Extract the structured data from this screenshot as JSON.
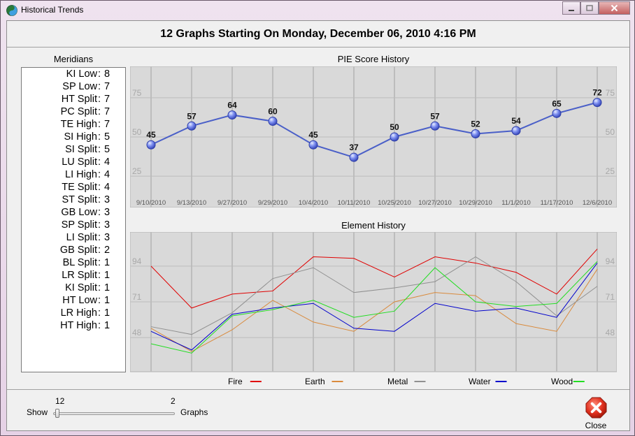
{
  "window": {
    "title": "Historical Trends",
    "icon": "yin-yang-icon"
  },
  "header": {
    "title": "12 Graphs Starting On Monday, December 06, 2010 4:16 PM"
  },
  "meridians": {
    "label": "Meridians",
    "items": [
      {
        "name": "KI Low",
        "value": "8"
      },
      {
        "name": "SP Low",
        "value": "7"
      },
      {
        "name": "HT Split",
        "value": "7"
      },
      {
        "name": "PC Split",
        "value": "7"
      },
      {
        "name": "TE High",
        "value": "7"
      },
      {
        "name": "SI High",
        "value": "5"
      },
      {
        "name": "SI Split",
        "value": "5"
      },
      {
        "name": "LU Split",
        "value": "4"
      },
      {
        "name": "LI High",
        "value": "4"
      },
      {
        "name": "TE Split",
        "value": "4"
      },
      {
        "name": "ST Split",
        "value": "3"
      },
      {
        "name": "GB Low",
        "value": "3"
      },
      {
        "name": "SP Split",
        "value": "3"
      },
      {
        "name": "LI Split",
        "value": "3"
      },
      {
        "name": "GB Split",
        "value": "2"
      },
      {
        "name": "BL Split",
        "value": "1"
      },
      {
        "name": "LR Split",
        "value": "1"
      },
      {
        "name": "KI Split",
        "value": "1"
      },
      {
        "name": "HT Low",
        "value": "1"
      },
      {
        "name": "LR High",
        "value": "1"
      },
      {
        "name": "HT High",
        "value": "1"
      }
    ]
  },
  "controls": {
    "show_label": "Show",
    "graphs_label": "Graphs",
    "slider_max_label": "12",
    "slider_min_label": "2",
    "close_label": "Close"
  },
  "chart_data": [
    {
      "type": "line",
      "title": "PIE Score History",
      "categories": [
        "9/10/2010",
        "9/13/2010",
        "9/27/2010",
        "9/29/2010",
        "10/4/2010",
        "10/11/2010",
        "10/25/2010",
        "10/27/2010",
        "10/29/2010",
        "11/1/2010",
        "11/17/2010",
        "12/6/2010"
      ],
      "series": [
        {
          "values": [
            45,
            57,
            64,
            60,
            45,
            37,
            50,
            57,
            52,
            54,
            65,
            72
          ],
          "color": "#4a5fc8"
        }
      ],
      "yticks": [
        25,
        50,
        75
      ],
      "ylim": [
        5,
        95
      ],
      "grid": true,
      "data_labels": true
    },
    {
      "type": "line",
      "title": "Element History",
      "categories": [
        "9/10/2010",
        "9/13/2010",
        "9/27/2010",
        "9/29/2010",
        "10/4/2010",
        "10/11/2010",
        "10/25/2010",
        "10/27/2010",
        "10/29/2010",
        "11/1/2010",
        "11/17/2010",
        "12/6/2010"
      ],
      "series": [
        {
          "name": "Fire",
          "color": "#e00000",
          "values": [
            94,
            67,
            76,
            78,
            100,
            99,
            87,
            100,
            96,
            90,
            76,
            105
          ]
        },
        {
          "name": "Earth",
          "color": "#d98a3c",
          "values": [
            54,
            39,
            53,
            72,
            58,
            52,
            71,
            77,
            75,
            57,
            52,
            92
          ]
        },
        {
          "name": "Metal",
          "color": "#909090",
          "values": [
            55,
            50,
            64,
            86,
            93,
            77,
            80,
            84,
            100,
            84,
            62,
            81
          ]
        },
        {
          "name": "Water",
          "color": "#0000cc",
          "values": [
            52,
            40,
            63,
            67,
            70,
            54,
            52,
            70,
            65,
            67,
            61,
            96
          ]
        },
        {
          "name": "Wood",
          "color": "#22dd22",
          "values": [
            44,
            38,
            62,
            66,
            72,
            61,
            65,
            93,
            71,
            68,
            70,
            97
          ]
        }
      ],
      "yticks": [
        48,
        71,
        94
      ],
      "ylim": [
        26,
        116
      ],
      "grid": true,
      "legend": "bottom"
    }
  ]
}
